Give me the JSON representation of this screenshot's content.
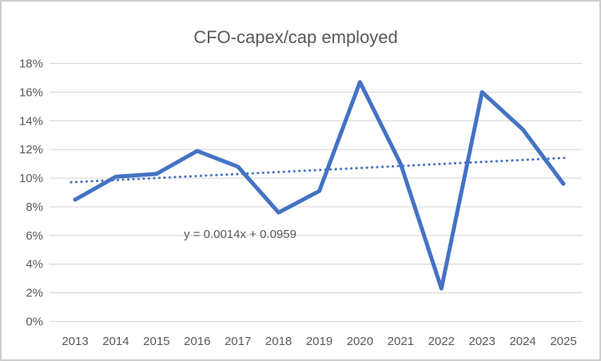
{
  "window": {
    "background": "#FFFFFF",
    "frame_border_color": "#CDCDCD"
  },
  "chart_data": {
    "type": "line",
    "title": "CFO-capex/cap employed",
    "categories": [
      "2013",
      "2014",
      "2015",
      "2016",
      "2017",
      "2018",
      "2019",
      "2020",
      "2021",
      "2022",
      "2023",
      "2024",
      "2025"
    ],
    "series": [
      {
        "name": "CFO-capex/cap employed",
        "values": [
          8.5,
          10.1,
          10.3,
          11.9,
          10.8,
          7.6,
          9.1,
          16.7,
          11.0,
          2.3,
          16.0,
          13.4,
          9.6
        ],
        "unit": "%"
      }
    ],
    "trendline": {
      "equation": "y = 0.0014x + 0.0959",
      "slope": 0.0014,
      "intercept": 0.0959,
      "style": "dotted"
    },
    "xlabel": "",
    "ylabel": "",
    "ylim": [
      0,
      18
    ],
    "ytick_step": 2,
    "ytick_labels": [
      "0%",
      "2%",
      "4%",
      "6%",
      "8%",
      "10%",
      "12%",
      "14%",
      "16%",
      "18%"
    ],
    "grid": "horizontal",
    "legend_position": "none",
    "colors": {
      "series_line": "#4472C4",
      "trendline": "#4472C4",
      "gridline": "#D9D9D9",
      "axis_text": "#595959",
      "title_text": "#595959",
      "equation_text": "#595959"
    }
  }
}
